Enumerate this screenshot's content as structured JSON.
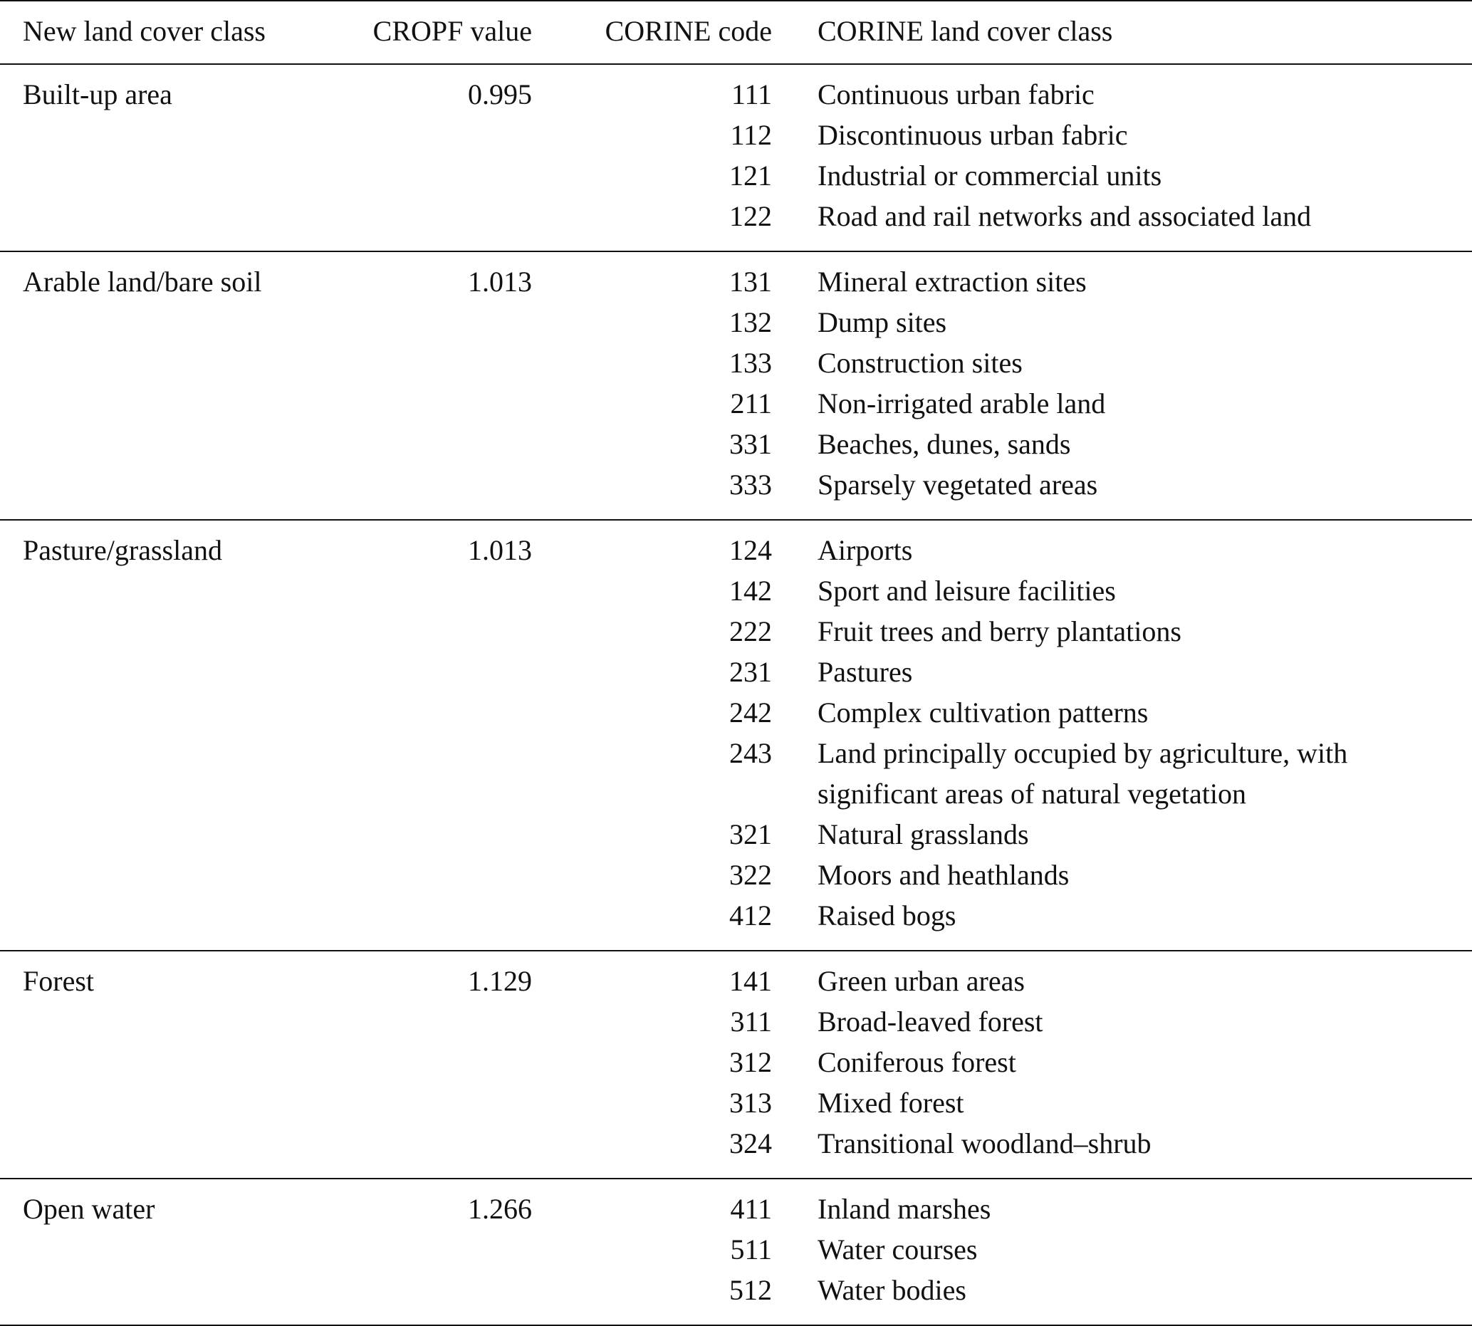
{
  "table": {
    "header": [
      "New land cover class",
      "CROPF value",
      "CORINE code",
      "CORINE land cover class"
    ],
    "groups": [
      {
        "class": "Built-up area",
        "cropf": "0.995",
        "rows": [
          [
            "111",
            "Continuous urban fabric"
          ],
          [
            "112",
            "Discontinuous urban fabric"
          ],
          [
            "121",
            "Industrial or commercial units"
          ],
          [
            "122",
            "Road and rail networks and associated land"
          ]
        ]
      },
      {
        "class": "Arable land/bare soil",
        "cropf": "1.013",
        "rows": [
          [
            "131",
            "Mineral extraction sites"
          ],
          [
            "132",
            "Dump sites"
          ],
          [
            "133",
            "Construction sites"
          ],
          [
            "211",
            "Non-irrigated arable land"
          ],
          [
            "331",
            "Beaches, dunes, sands"
          ],
          [
            "333",
            "Sparsely vegetated areas"
          ]
        ]
      },
      {
        "class": "Pasture/grassland",
        "cropf": "1.013",
        "rows": [
          [
            "124",
            "Airports"
          ],
          [
            "142",
            "Sport and leisure facilities"
          ],
          [
            "222",
            "Fruit trees and berry plantations"
          ],
          [
            "231",
            "Pastures"
          ],
          [
            "242",
            "Complex cultivation patterns"
          ],
          [
            "243",
            "Land principally occupied by agriculture, with significant areas of natural vegetation"
          ],
          [
            "321",
            "Natural grasslands"
          ],
          [
            "322",
            "Moors and heathlands"
          ],
          [
            "412",
            "Raised bogs"
          ]
        ]
      },
      {
        "class": "Forest",
        "cropf": "1.129",
        "rows": [
          [
            "141",
            "Green urban areas"
          ],
          [
            "311",
            "Broad-leaved forest"
          ],
          [
            "312",
            "Coniferous forest"
          ],
          [
            "313",
            "Mixed forest"
          ],
          [
            "324",
            "Transitional woodland–shrub"
          ]
        ]
      },
      {
        "class": "Open water",
        "cropf": "1.266",
        "rows": [
          [
            "411",
            "Inland marshes"
          ],
          [
            "511",
            "Water courses"
          ],
          [
            "512",
            "Water bodies"
          ]
        ]
      }
    ]
  }
}
